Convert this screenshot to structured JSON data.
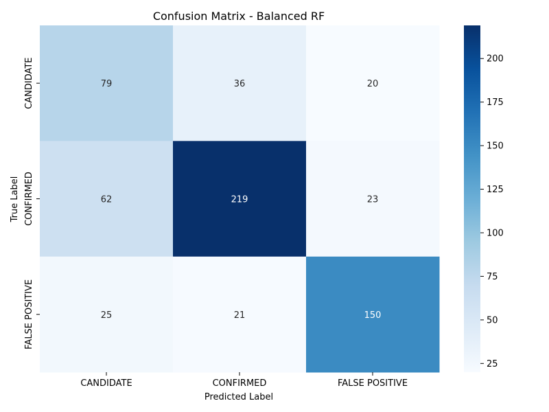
{
  "chart_data": {
    "type": "heatmap",
    "title": "Confusion Matrix - Balanced RF",
    "xlabel": "Predicted Label",
    "ylabel": "True Label",
    "x_categories": [
      "CANDIDATE",
      "CONFIRMED",
      "FALSE POSITIVE"
    ],
    "y_categories": [
      "CANDIDATE",
      "CONFIRMED",
      "FALSE POSITIVE"
    ],
    "values": [
      [
        79,
        36,
        20
      ],
      [
        62,
        219,
        23
      ],
      [
        25,
        21,
        150
      ]
    ],
    "colormap": "Blues",
    "color_range": [
      20,
      219
    ],
    "colorbar_ticks": [
      25,
      50,
      75,
      100,
      125,
      150,
      175,
      200
    ],
    "colors": {
      "low": "#f7fbff",
      "high": "#08306b"
    }
  }
}
